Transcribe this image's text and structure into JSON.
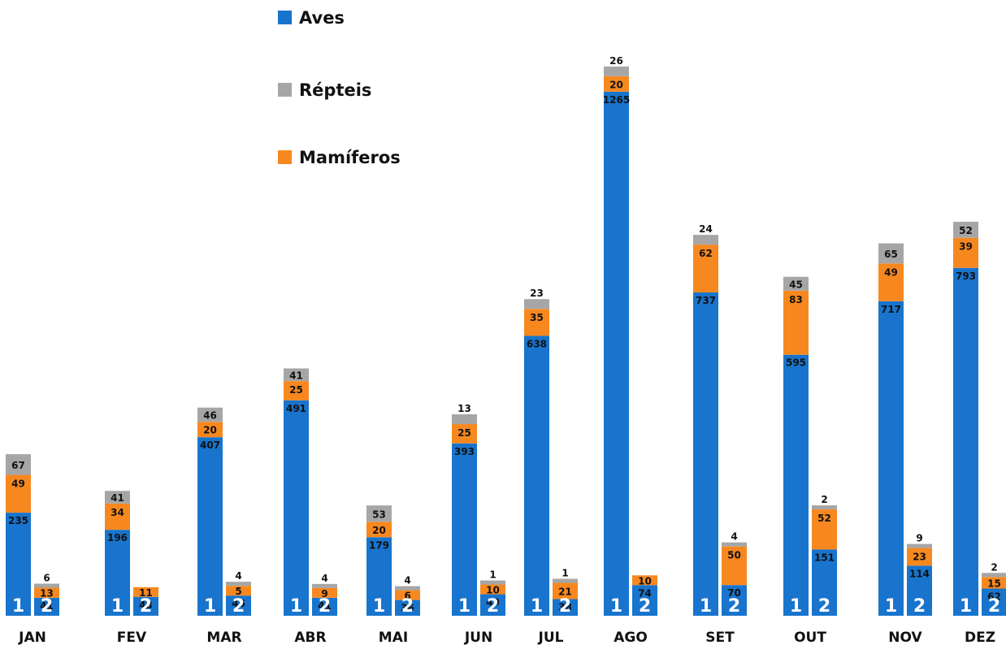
{
  "chart_data": {
    "type": "bar",
    "stacked": true,
    "legend_position": "top-left",
    "grid": false,
    "categories": [
      "JAN",
      "FEV",
      "MAR",
      "ABR",
      "MAI",
      "JUN",
      "JUL",
      "AGO",
      "SET",
      "OUT",
      "NOV",
      "DEZ"
    ],
    "sub_categories": [
      "1",
      "2"
    ],
    "series": [
      {
        "name": "Aves",
        "color": "#1874cd",
        "values": [
          [
            235,
            41
          ],
          [
            196,
            43
          ],
          [
            407,
            46
          ],
          [
            491,
            41
          ],
          [
            179,
            36
          ],
          [
            393,
            49
          ],
          [
            638,
            38
          ],
          [
            1265,
            74
          ],
          [
            737,
            70
          ],
          [
            595,
            151
          ],
          [
            717,
            114
          ],
          [
            793,
            62
          ]
        ]
      },
      {
        "name": "Mamíferos",
        "color": "#f7881f",
        "values": [
          [
            49,
            13
          ],
          [
            34,
            11
          ],
          [
            20,
            5
          ],
          [
            25,
            9
          ],
          [
            20,
            6
          ],
          [
            25,
            10
          ],
          [
            35,
            21
          ],
          [
            20,
            10
          ],
          [
            62,
            50
          ],
          [
            83,
            52
          ],
          [
            49,
            23
          ],
          [
            39,
            15
          ]
        ]
      },
      {
        "name": "Répteis",
        "color": "#a6a6a6",
        "values": [
          [
            67,
            6
          ],
          [
            41,
            null
          ],
          [
            46,
            4
          ],
          [
            41,
            4
          ],
          [
            53,
            4
          ],
          [
            13,
            1
          ],
          [
            23,
            1
          ],
          [
            26,
            null
          ],
          [
            24,
            4
          ],
          [
            45,
            2
          ],
          [
            65,
            9
          ],
          [
            52,
            2
          ]
        ]
      }
    ],
    "legend_order": [
      "Aves",
      "Répteis",
      "Mamíferos"
    ]
  }
}
